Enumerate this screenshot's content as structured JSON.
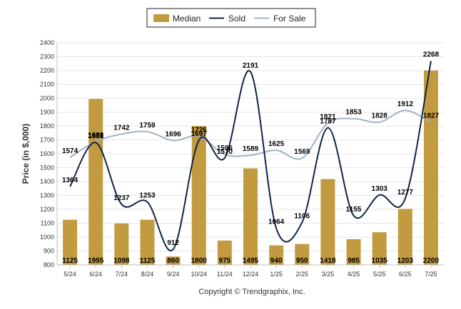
{
  "chart_data": {
    "type": "bar",
    "categories": [
      "5/24",
      "6/24",
      "7/24",
      "8/24",
      "9/24",
      "10/24",
      "11/24",
      "12/24",
      "1/25",
      "2/25",
      "3/25",
      "4/25",
      "5/25",
      "6/25",
      "7/25"
    ],
    "series": [
      {
        "name": "Median",
        "type": "bar",
        "color": "#c29a40",
        "values": [
          1125,
          1995,
          1098,
          1125,
          860,
          1800,
          975,
          1495,
          940,
          950,
          1418,
          985,
          1035,
          1203,
          2200
        ]
      },
      {
        "name": "Sold",
        "type": "line",
        "color": "#0f2445",
        "values": [
          1364,
          1681,
          1237,
          1253,
          912,
          1697,
          1570,
          2191,
          1064,
          1106,
          1787,
          1155,
          1303,
          1277,
          2268
        ]
      },
      {
        "name": "For Sale",
        "type": "line",
        "color": "#a4afc6",
        "values": [
          1574,
          1688,
          1742,
          1759,
          1696,
          1726,
          1596,
          1589,
          1625,
          1569,
          1821,
          1853,
          1828,
          1912,
          1827
        ]
      }
    ],
    "ylabel": "Price (in $,000)",
    "xlabel": "",
    "ylim": [
      800,
      2400
    ],
    "yticks": [
      800,
      900,
      1000,
      1100,
      1200,
      1300,
      1400,
      1500,
      1600,
      1700,
      1800,
      1900,
      2000,
      2100,
      2200,
      2300,
      2400
    ],
    "grid": true,
    "legend": "top-center"
  },
  "legend": {
    "median": "Median",
    "sold": "Sold",
    "for_sale": "For Sale"
  },
  "copyright": "Copyright © Trendgraphix, Inc."
}
